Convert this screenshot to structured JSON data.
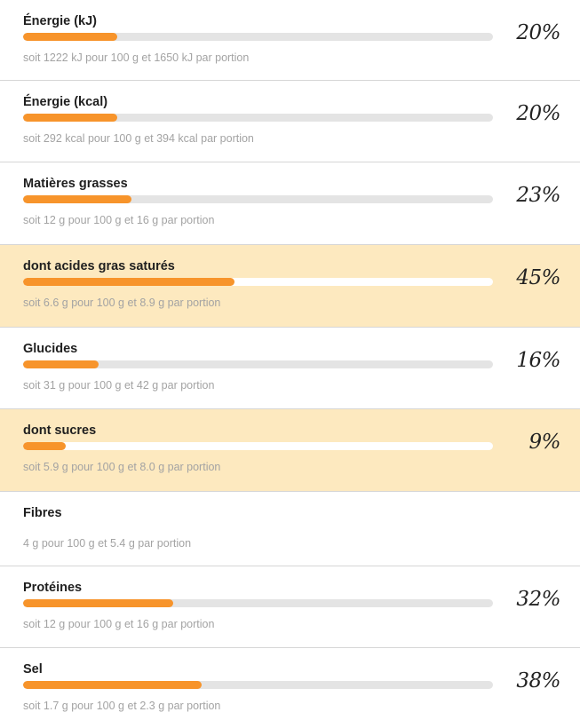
{
  "nutrients": [
    {
      "label": "Énergie (kJ)",
      "detail": "soit 1222 kJ pour 100 g et 1650 kJ par portion",
      "percent_text": "20%",
      "level": 0.2,
      "highlight": false
    },
    {
      "label": "Énergie (kcal)",
      "detail": "soit 292 kcal pour 100 g et 394 kcal par portion",
      "percent_text": "20%",
      "level": 0.2,
      "highlight": false
    },
    {
      "label": "Matières grasses",
      "detail": "soit 12 g pour 100 g et 16 g par portion",
      "percent_text": "23%",
      "level": 0.23,
      "highlight": false
    },
    {
      "label": "dont acides gras saturés",
      "detail": "soit 6.6 g pour 100 g et 8.9 g par portion",
      "percent_text": "45%",
      "level": 0.45,
      "highlight": true
    },
    {
      "label": "Glucides",
      "detail": "soit 31 g pour 100 g et 42 g par portion",
      "percent_text": "16%",
      "level": 0.16,
      "highlight": false
    },
    {
      "label": "dont sucres",
      "detail": "soit 5.9 g pour 100 g et 8.0 g par portion",
      "percent_text": "9%",
      "level": 0.09,
      "highlight": true
    },
    {
      "label": "Fibres",
      "detail": "4 g pour 100 g et 5.4 g par portion",
      "percent_text": null,
      "level": null,
      "highlight": false
    },
    {
      "label": "Protéines",
      "detail": "soit 12 g pour 100 g et 16 g par portion",
      "percent_text": "32%",
      "level": 0.32,
      "highlight": false
    },
    {
      "label": "Sel",
      "detail": "soit 1.7 g pour 100 g et 2.3 g par portion",
      "percent_text": "38%",
      "level": 0.38,
      "highlight": false
    }
  ],
  "colors": {
    "bar_fill": "#f7942b",
    "bar_track": "#e4e4e4",
    "highlight_bg": "#fde9bf"
  }
}
